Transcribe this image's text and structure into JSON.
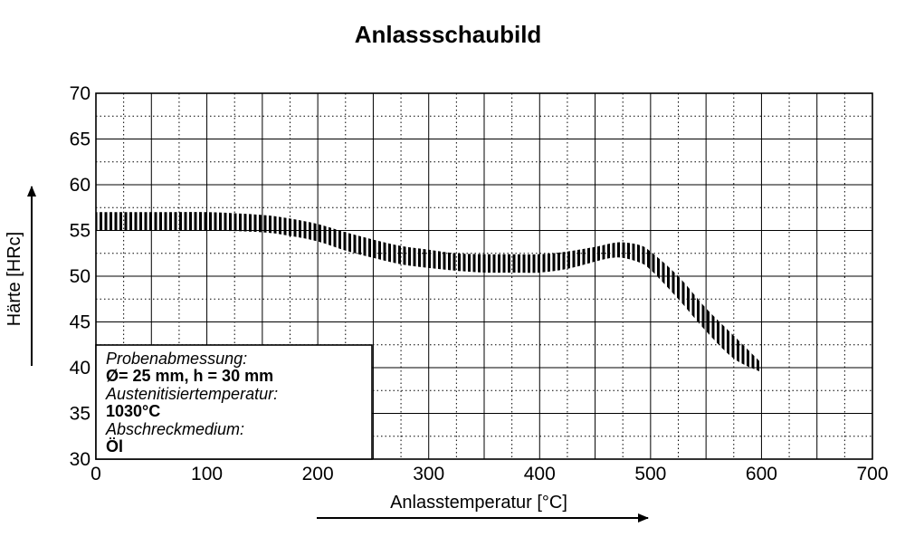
{
  "chart_data": {
    "type": "area",
    "title": "Anlassschaubild",
    "xlabel": "Anlasstemperatur [°C]",
    "ylabel": "Härte [HRc]",
    "xlim": [
      0,
      700
    ],
    "ylim": [
      30,
      70
    ],
    "x_ticks": [
      0,
      100,
      200,
      300,
      400,
      500,
      600,
      700
    ],
    "y_ticks": [
      30,
      35,
      40,
      45,
      50,
      55,
      60,
      65,
      70
    ],
    "grid": true,
    "grid_style": "dotted minor lines every 25 °C and 2.5 HRc, solid major lines every 50 °C and 5 HRc",
    "band": {
      "x": [
        0,
        50,
        100,
        150,
        175,
        200,
        225,
        250,
        275,
        300,
        325,
        350,
        375,
        400,
        425,
        450,
        465,
        475,
        490,
        500,
        525,
        550,
        575,
        600
      ],
      "upper": [
        57,
        57,
        57,
        56.7,
        56.3,
        55.7,
        54.8,
        54.0,
        53.3,
        52.9,
        52.5,
        52.4,
        52.4,
        52.4,
        52.7,
        53.2,
        53.6,
        53.7,
        53.4,
        52.7,
        50.0,
        46.5,
        43.5,
        40.5
      ],
      "lower": [
        55,
        55,
        55,
        54.8,
        54.4,
        53.8,
        52.8,
        52.0,
        51.3,
        50.9,
        50.6,
        50.4,
        50.4,
        50.4,
        50.8,
        51.6,
        52.0,
        52.0,
        51.5,
        50.7,
        47.5,
        44.0,
        41.0,
        39.5
      ]
    },
    "legend_box": {
      "position": "bottom-left",
      "lines": [
        {
          "text": "Probenabmessung:",
          "style": "italic"
        },
        {
          "text": "Ø= 25 mm, h = 30 mm",
          "style": "bold"
        },
        {
          "text": "Austenitisiertemperatur:",
          "style": "italic"
        },
        {
          "text": "1030°C",
          "style": "bold"
        },
        {
          "text": "Abschreckmedium:",
          "style": "italic"
        },
        {
          "text": "Öl",
          "style": "bold"
        }
      ]
    }
  }
}
